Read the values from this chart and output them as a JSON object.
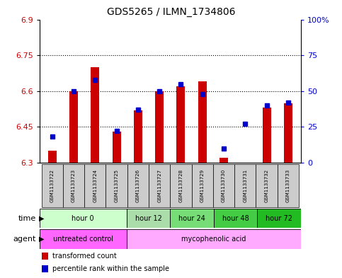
{
  "title": "GDS5265 / ILMN_1734806",
  "samples": [
    "GSM1133722",
    "GSM1133723",
    "GSM1133724",
    "GSM1133725",
    "GSM1133726",
    "GSM1133727",
    "GSM1133728",
    "GSM1133729",
    "GSM1133730",
    "GSM1133731",
    "GSM1133732",
    "GSM1133733"
  ],
  "transformed_count": [
    6.35,
    6.6,
    6.7,
    6.43,
    6.52,
    6.6,
    6.62,
    6.64,
    6.32,
    6.3,
    6.53,
    6.55
  ],
  "percentile_rank": [
    18,
    50,
    58,
    22,
    37,
    50,
    55,
    48,
    10,
    27,
    40,
    42
  ],
  "ylim_left": [
    6.3,
    6.9
  ],
  "ylim_right": [
    0,
    100
  ],
  "yticks_left": [
    6.3,
    6.45,
    6.6,
    6.75,
    6.9
  ],
  "yticks_right": [
    0,
    25,
    50,
    75,
    100
  ],
  "ytick_labels_left": [
    "6.3",
    "6.45",
    "6.6",
    "6.75",
    "6.9"
  ],
  "ytick_labels_right": [
    "0",
    "25",
    "50",
    "75",
    "100%"
  ],
  "bar_color": "#cc0000",
  "dot_color": "#0000cc",
  "baseline": 6.3,
  "time_groups": [
    {
      "label": "hour 0",
      "start": 0,
      "end": 4,
      "color": "#ccffcc"
    },
    {
      "label": "hour 12",
      "start": 4,
      "end": 6,
      "color": "#aaddaa"
    },
    {
      "label": "hour 24",
      "start": 6,
      "end": 8,
      "color": "#77dd77"
    },
    {
      "label": "hour 48",
      "start": 8,
      "end": 10,
      "color": "#44cc44"
    },
    {
      "label": "hour 72",
      "start": 10,
      "end": 12,
      "color": "#22bb22"
    }
  ],
  "agent_groups": [
    {
      "label": "untreated control",
      "start": 0,
      "end": 4,
      "color": "#ff66ff"
    },
    {
      "label": "mycophenolic acid",
      "start": 4,
      "end": 12,
      "color": "#ffaaff"
    }
  ],
  "sample_box_color": "#cccccc",
  "left_axis_color": "#cc0000",
  "right_axis_color": "#0000cc",
  "font_size": 8,
  "bar_width": 0.4
}
